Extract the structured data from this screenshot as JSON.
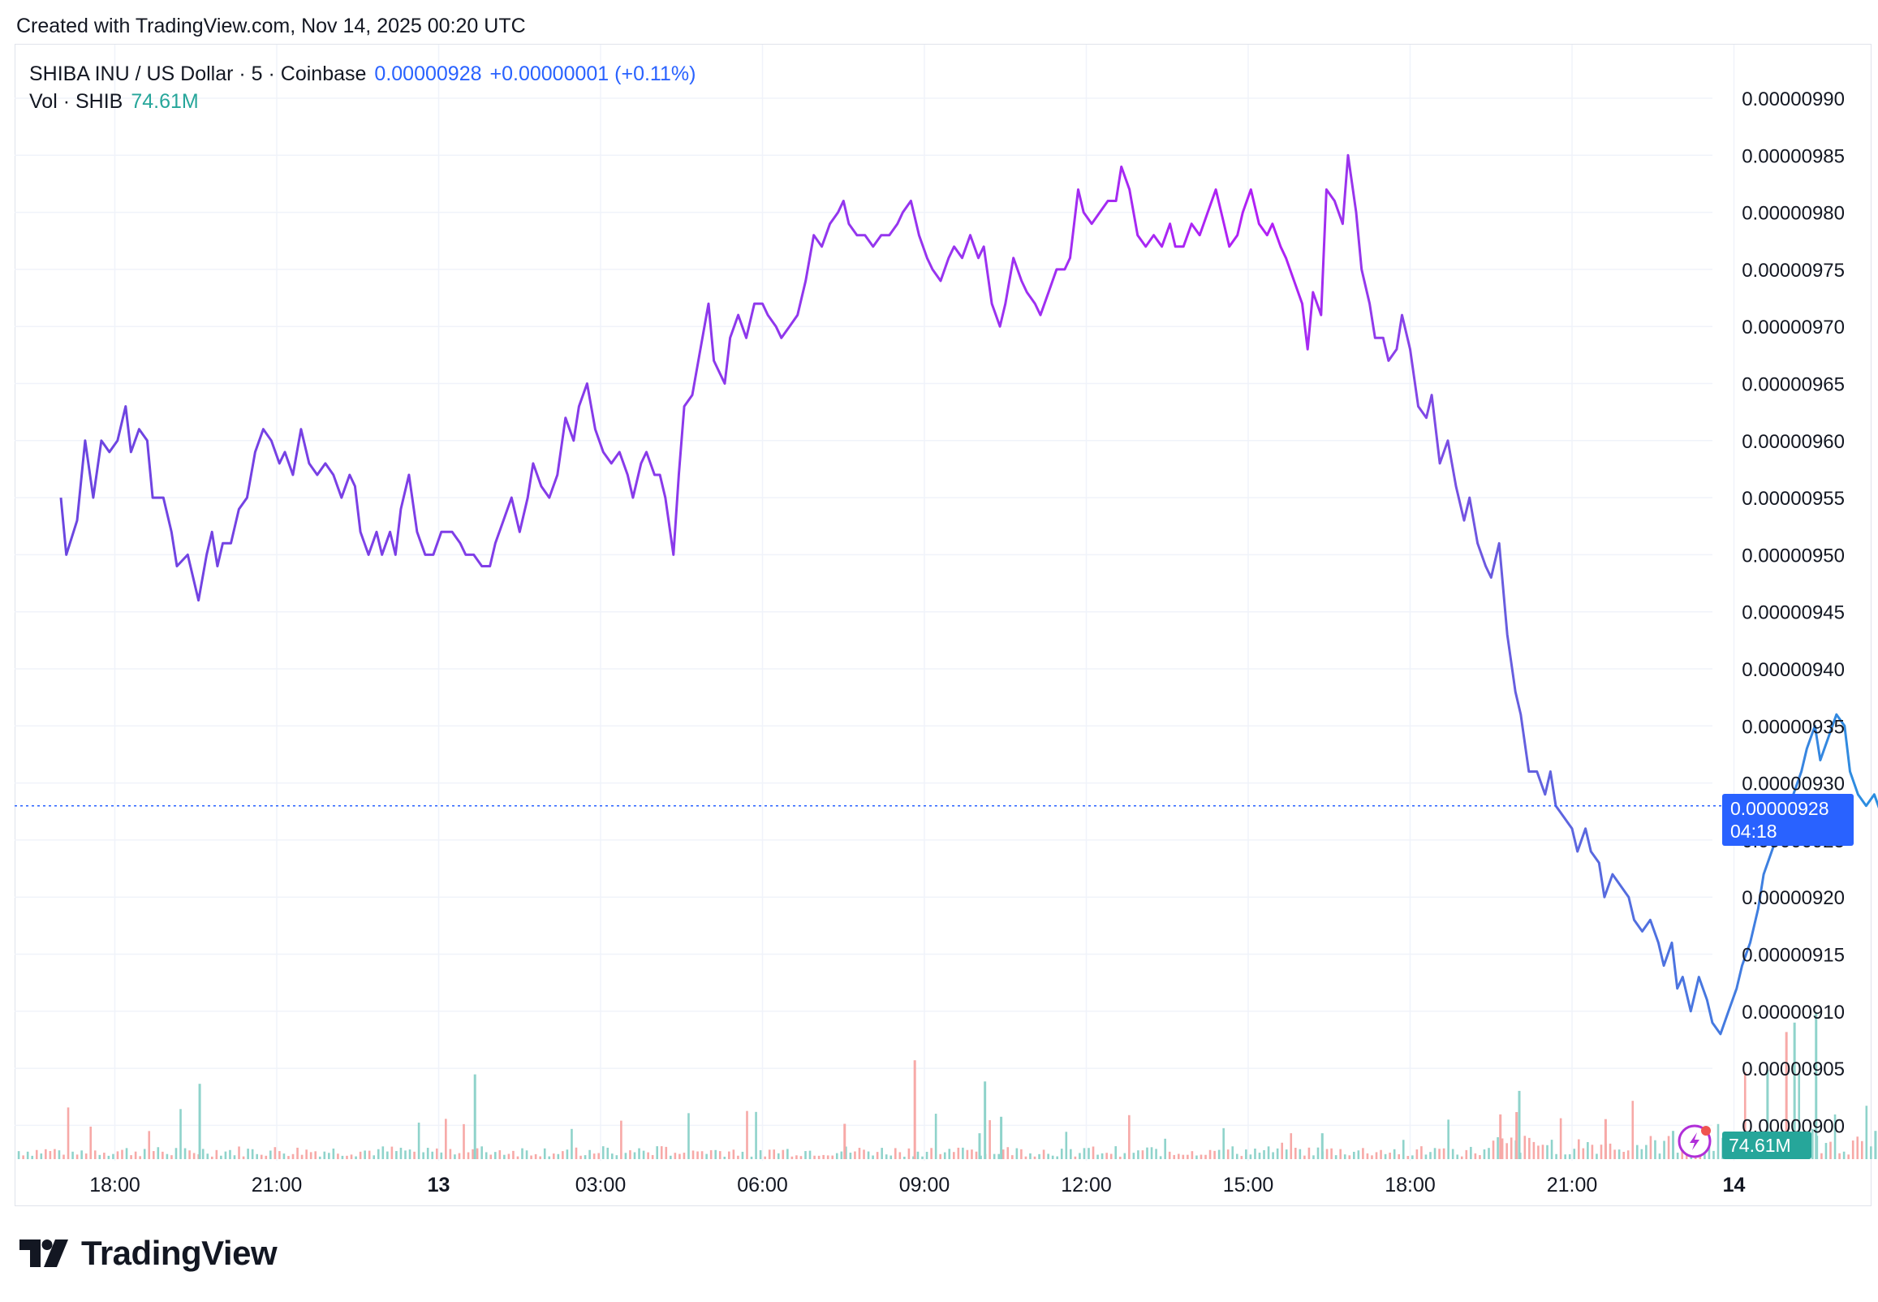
{
  "header": {
    "created_text": "Created with TradingView.com, Nov 14, 2025 00:20 UTC"
  },
  "legend": {
    "symbol": "SHIBA INU / US Dollar · 5 · Coinbase",
    "last_price": "0.00000928",
    "change": "+0.00000001 (+0.11%)",
    "vol_label": "Vol · SHIB",
    "vol_value": "74.61M"
  },
  "price_tag": {
    "price": "0.00000928",
    "countdown": "04:18"
  },
  "vol_tag": {
    "value": "74.61M"
  },
  "brand": {
    "name": "TradingView"
  },
  "colors": {
    "line_start": "#7b3fe4",
    "line_mid": "#b026ff",
    "line_end": "#2e86de",
    "up_volume": "#26a69a",
    "down_volume": "#ef5350",
    "accent": "#2962ff"
  },
  "icons": [
    "tradingview-logo-icon",
    "lightning-alert-icon"
  ],
  "chart_data": {
    "type": "line",
    "title": "SHIBA INU / US Dollar · 5 · Coinbase",
    "xlabel": "",
    "ylabel": "",
    "ylim": [
      8.96e-06,
      9.92e-06
    ],
    "y_ticks": [
      "0.00000990",
      "0.00000985",
      "0.00000980",
      "0.00000975",
      "0.00000970",
      "0.00000965",
      "0.00000960",
      "0.00000955",
      "0.00000950",
      "0.00000945",
      "0.00000940",
      "0.00000935",
      "0.00000930",
      "0.00000925",
      "0.00000920",
      "0.00000915",
      "0.00000910",
      "0.00000905",
      "0.00000900"
    ],
    "x_ticks": [
      {
        "label": "18:00",
        "t": 1.0
      },
      {
        "label": "21:00",
        "t": 4.0
      },
      {
        "label": "13",
        "t": 7.0
      },
      {
        "label": "03:00",
        "t": 10.0
      },
      {
        "label": "06:00",
        "t": 13.0
      },
      {
        "label": "09:00",
        "t": 16.0
      },
      {
        "label": "12:00",
        "t": 19.0
      },
      {
        "label": "15:00",
        "t": 22.0
      },
      {
        "label": "18:00",
        "t": 25.0
      },
      {
        "label": "21:00",
        "t": 28.0
      },
      {
        "label": "14",
        "t": 31.0
      }
    ],
    "x_unit": "hours since Nov 12 17:00 UTC",
    "series": [
      {
        "values": [
          [
            0.0,
            9.55
          ],
          [
            0.1,
            9.5
          ],
          [
            0.3,
            9.53
          ],
          [
            0.45,
            9.6
          ],
          [
            0.6,
            9.55
          ],
          [
            0.75,
            9.6
          ],
          [
            0.9,
            9.59
          ],
          [
            1.05,
            9.6
          ],
          [
            1.2,
            9.63
          ],
          [
            1.3,
            9.59
          ],
          [
            1.45,
            9.61
          ],
          [
            1.6,
            9.6
          ],
          [
            1.7,
            9.55
          ],
          [
            1.9,
            9.55
          ],
          [
            2.05,
            9.52
          ],
          [
            2.15,
            9.49
          ],
          [
            2.35,
            9.5
          ],
          [
            2.55,
            9.46
          ],
          [
            2.7,
            9.5
          ],
          [
            2.8,
            9.52
          ],
          [
            2.9,
            9.49
          ],
          [
            3.0,
            9.51
          ],
          [
            3.15,
            9.51
          ],
          [
            3.3,
            9.54
          ],
          [
            3.45,
            9.55
          ],
          [
            3.6,
            9.59
          ],
          [
            3.75,
            9.61
          ],
          [
            3.9,
            9.6
          ],
          [
            4.05,
            9.58
          ],
          [
            4.15,
            9.59
          ],
          [
            4.3,
            9.57
          ],
          [
            4.45,
            9.61
          ],
          [
            4.6,
            9.58
          ],
          [
            4.75,
            9.57
          ],
          [
            4.9,
            9.58
          ],
          [
            5.05,
            9.57
          ],
          [
            5.2,
            9.55
          ],
          [
            5.35,
            9.57
          ],
          [
            5.45,
            9.56
          ],
          [
            5.55,
            9.52
          ],
          [
            5.7,
            9.5
          ],
          [
            5.85,
            9.52
          ],
          [
            5.95,
            9.5
          ],
          [
            6.1,
            9.52
          ],
          [
            6.2,
            9.5
          ],
          [
            6.3,
            9.54
          ],
          [
            6.45,
            9.57
          ],
          [
            6.6,
            9.52
          ],
          [
            6.75,
            9.5
          ],
          [
            6.9,
            9.5
          ],
          [
            7.05,
            9.52
          ],
          [
            7.25,
            9.52
          ],
          [
            7.4,
            9.51
          ],
          [
            7.5,
            9.5
          ],
          [
            7.65,
            9.5
          ],
          [
            7.8,
            9.49
          ],
          [
            7.95,
            9.49
          ],
          [
            8.05,
            9.51
          ],
          [
            8.2,
            9.53
          ],
          [
            8.35,
            9.55
          ],
          [
            8.5,
            9.52
          ],
          [
            8.65,
            9.55
          ],
          [
            8.75,
            9.58
          ],
          [
            8.9,
            9.56
          ],
          [
            9.05,
            9.55
          ],
          [
            9.2,
            9.57
          ],
          [
            9.35,
            9.62
          ],
          [
            9.5,
            9.6
          ],
          [
            9.6,
            9.63
          ],
          [
            9.75,
            9.65
          ],
          [
            9.9,
            9.61
          ],
          [
            10.05,
            9.59
          ],
          [
            10.2,
            9.58
          ],
          [
            10.35,
            9.59
          ],
          [
            10.5,
            9.57
          ],
          [
            10.6,
            9.55
          ],
          [
            10.75,
            9.58
          ],
          [
            10.85,
            9.59
          ],
          [
            11.0,
            9.57
          ],
          [
            11.1,
            9.57
          ],
          [
            11.2,
            9.55
          ],
          [
            11.35,
            9.5
          ],
          [
            11.45,
            9.57
          ],
          [
            11.55,
            9.63
          ],
          [
            11.7,
            9.64
          ],
          [
            11.85,
            9.68
          ],
          [
            12.0,
            9.72
          ],
          [
            12.1,
            9.67
          ],
          [
            12.3,
            9.65
          ],
          [
            12.4,
            9.69
          ],
          [
            12.55,
            9.71
          ],
          [
            12.7,
            9.69
          ],
          [
            12.85,
            9.72
          ],
          [
            13.0,
            9.72
          ],
          [
            13.1,
            9.71
          ],
          [
            13.25,
            9.7
          ],
          [
            13.35,
            9.69
          ],
          [
            13.5,
            9.7
          ],
          [
            13.65,
            9.71
          ],
          [
            13.8,
            9.74
          ],
          [
            13.95,
            9.78
          ],
          [
            14.1,
            9.77
          ],
          [
            14.25,
            9.79
          ],
          [
            14.4,
            9.8
          ],
          [
            14.5,
            9.81
          ],
          [
            14.6,
            9.79
          ],
          [
            14.75,
            9.78
          ],
          [
            14.9,
            9.78
          ],
          [
            15.05,
            9.77
          ],
          [
            15.2,
            9.78
          ],
          [
            15.35,
            9.78
          ],
          [
            15.5,
            9.79
          ],
          [
            15.6,
            9.8
          ],
          [
            15.75,
            9.81
          ],
          [
            15.9,
            9.78
          ],
          [
            16.05,
            9.76
          ],
          [
            16.15,
            9.75
          ],
          [
            16.3,
            9.74
          ],
          [
            16.45,
            9.76
          ],
          [
            16.55,
            9.77
          ],
          [
            16.7,
            9.76
          ],
          [
            16.85,
            9.78
          ],
          [
            17.0,
            9.76
          ],
          [
            17.1,
            9.77
          ],
          [
            17.25,
            9.72
          ],
          [
            17.4,
            9.7
          ],
          [
            17.5,
            9.72
          ],
          [
            17.65,
            9.76
          ],
          [
            17.8,
            9.74
          ],
          [
            17.9,
            9.73
          ],
          [
            18.05,
            9.72
          ],
          [
            18.15,
            9.71
          ],
          [
            18.3,
            9.73
          ],
          [
            18.45,
            9.75
          ],
          [
            18.6,
            9.75
          ],
          [
            18.7,
            9.76
          ],
          [
            18.85,
            9.82
          ],
          [
            18.95,
            9.8
          ],
          [
            19.1,
            9.79
          ],
          [
            19.25,
            9.8
          ],
          [
            19.4,
            9.81
          ],
          [
            19.55,
            9.81
          ],
          [
            19.65,
            9.84
          ],
          [
            19.8,
            9.82
          ],
          [
            19.95,
            9.78
          ],
          [
            20.1,
            9.77
          ],
          [
            20.25,
            9.78
          ],
          [
            20.4,
            9.77
          ],
          [
            20.55,
            9.79
          ],
          [
            20.65,
            9.77
          ],
          [
            20.8,
            9.77
          ],
          [
            20.95,
            9.79
          ],
          [
            21.1,
            9.78
          ],
          [
            21.25,
            9.8
          ],
          [
            21.4,
            9.82
          ],
          [
            21.55,
            9.79
          ],
          [
            21.65,
            9.77
          ],
          [
            21.8,
            9.78
          ],
          [
            21.9,
            9.8
          ],
          [
            22.05,
            9.82
          ],
          [
            22.2,
            9.79
          ],
          [
            22.35,
            9.78
          ],
          [
            22.45,
            9.79
          ],
          [
            22.6,
            9.77
          ],
          [
            22.7,
            9.76
          ],
          [
            22.85,
            9.74
          ],
          [
            23.0,
            9.72
          ],
          [
            23.1,
            9.68
          ],
          [
            23.2,
            9.73
          ],
          [
            23.35,
            9.71
          ],
          [
            23.45,
            9.82
          ],
          [
            23.6,
            9.81
          ],
          [
            23.75,
            9.79
          ],
          [
            23.85,
            9.85
          ],
          [
            24.0,
            9.8
          ],
          [
            24.1,
            9.75
          ],
          [
            24.25,
            9.72
          ],
          [
            24.35,
            9.69
          ],
          [
            24.5,
            9.69
          ],
          [
            24.6,
            9.67
          ],
          [
            24.75,
            9.68
          ],
          [
            24.85,
            9.71
          ],
          [
            25.0,
            9.68
          ],
          [
            25.15,
            9.63
          ],
          [
            25.3,
            9.62
          ],
          [
            25.4,
            9.64
          ],
          [
            25.55,
            9.58
          ],
          [
            25.7,
            9.6
          ],
          [
            25.85,
            9.56
          ],
          [
            26.0,
            9.53
          ],
          [
            26.1,
            9.55
          ],
          [
            26.25,
            9.51
          ],
          [
            26.4,
            9.49
          ],
          [
            26.5,
            9.48
          ],
          [
            26.65,
            9.51
          ],
          [
            26.8,
            9.43
          ],
          [
            26.95,
            9.38
          ],
          [
            27.05,
            9.36
          ],
          [
            27.2,
            9.31
          ],
          [
            27.35,
            9.31
          ],
          [
            27.5,
            9.29
          ],
          [
            27.6,
            9.31
          ],
          [
            27.7,
            9.28
          ],
          [
            27.85,
            9.27
          ],
          [
            28.0,
            9.26
          ],
          [
            28.1,
            9.24
          ],
          [
            28.25,
            9.26
          ],
          [
            28.35,
            9.24
          ],
          [
            28.5,
            9.23
          ],
          [
            28.6,
            9.2
          ],
          [
            28.75,
            9.22
          ],
          [
            28.9,
            9.21
          ],
          [
            29.05,
            9.2
          ],
          [
            29.15,
            9.18
          ],
          [
            29.3,
            9.17
          ],
          [
            29.45,
            9.18
          ],
          [
            29.6,
            9.16
          ],
          [
            29.7,
            9.14
          ],
          [
            29.85,
            9.16
          ],
          [
            29.95,
            9.12
          ],
          [
            30.05,
            9.13
          ],
          [
            30.2,
            9.1
          ],
          [
            30.35,
            9.13
          ],
          [
            30.5,
            9.11
          ],
          [
            30.6,
            9.09
          ],
          [
            30.75,
            9.08
          ],
          [
            30.9,
            9.1
          ],
          [
            31.05,
            9.12
          ],
          [
            31.15,
            9.14
          ],
          [
            31.3,
            9.16
          ],
          [
            31.45,
            9.19
          ],
          [
            31.55,
            9.22
          ],
          [
            31.7,
            9.24
          ],
          [
            31.85,
            9.26
          ],
          [
            31.95,
            9.28
          ],
          [
            32.1,
            9.29
          ],
          [
            32.25,
            9.31
          ],
          [
            32.35,
            9.33
          ],
          [
            32.5,
            9.35
          ],
          [
            32.6,
            9.32
          ],
          [
            32.75,
            9.34
          ],
          [
            32.9,
            9.36
          ],
          [
            33.05,
            9.35
          ],
          [
            33.15,
            9.31
          ],
          [
            33.3,
            9.29
          ],
          [
            33.45,
            9.28
          ],
          [
            33.6,
            9.29
          ],
          [
            33.75,
            9.27
          ],
          [
            33.9,
            9.28
          ],
          [
            34.0,
            9.28
          ]
        ]
      }
    ],
    "current_price": 9.28e-06,
    "volume_series": {
      "label": "Vol · SHIB",
      "last": "74.61M",
      "note": "relative heights 0-1 of max visible volume",
      "spikes": [
        {
          "t": 2.55,
          "v": 0.32,
          "dir": "up"
        },
        {
          "t": 7.65,
          "v": 0.36,
          "dir": "up"
        },
        {
          "t": 14.5,
          "v": 0.15,
          "dir": "down"
        },
        {
          "t": 15.8,
          "v": 0.42,
          "dir": "down"
        },
        {
          "t": 17.1,
          "v": 0.33,
          "dir": "up"
        },
        {
          "t": 17.4,
          "v": 0.18,
          "dir": "up"
        },
        {
          "t": 17.0,
          "v": 0.11,
          "dir": "up"
        },
        {
          "t": 23.35,
          "v": 0.11,
          "dir": "up"
        },
        {
          "t": 26.65,
          "v": 0.19,
          "dir": "down"
        },
        {
          "t": 27.0,
          "v": 0.29,
          "dir": "up"
        },
        {
          "t": 26.95,
          "v": 0.2,
          "dir": "down"
        },
        {
          "t": 28.6,
          "v": 0.17,
          "dir": "down"
        },
        {
          "t": 29.85,
          "v": 0.12,
          "dir": "up"
        },
        {
          "t": 31.6,
          "v": 0.38,
          "dir": "up"
        },
        {
          "t": 31.95,
          "v": 0.54,
          "dir": "down"
        },
        {
          "t": 32.1,
          "v": 0.58,
          "dir": "up"
        },
        {
          "t": 32.5,
          "v": 0.62,
          "dir": "up"
        },
        {
          "t": 33.6,
          "v": 0.12,
          "dir": "up"
        }
      ]
    }
  }
}
